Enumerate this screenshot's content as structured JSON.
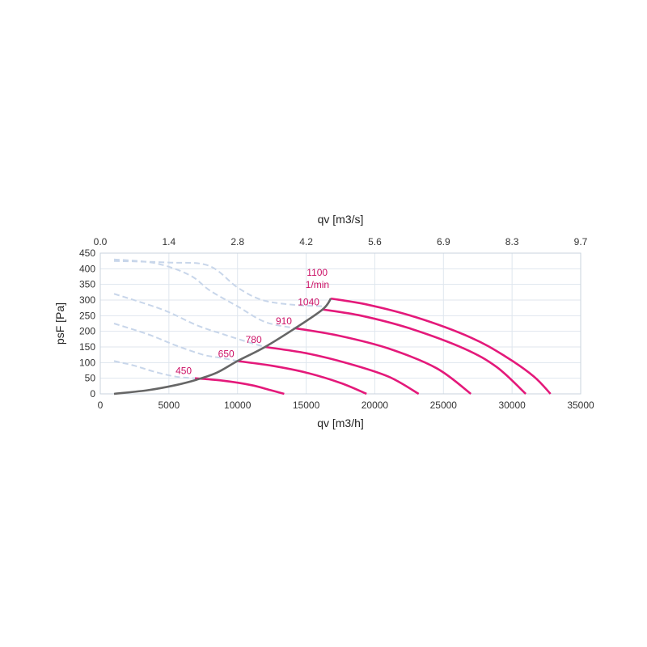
{
  "chart_data": {
    "type": "line",
    "title": "",
    "xlabel": "qv [m3/h]",
    "x2label": "qv [m3/s]",
    "ylabel": "psF [Pa]",
    "xlim": [
      0,
      35000
    ],
    "ylim": [
      0,
      450
    ],
    "x_ticks": [
      "0",
      "5000",
      "10000",
      "15000",
      "20000",
      "25000",
      "30000",
      "35000"
    ],
    "x2_ticks": [
      "0.0",
      "1.4",
      "2.8",
      "4.2",
      "5.6",
      "6.9",
      "8.3",
      "9.7"
    ],
    "y_ticks": [
      "0",
      "50",
      "100",
      "150",
      "200",
      "250",
      "300",
      "350",
      "400",
      "450"
    ],
    "grid": true,
    "unit_label": "1/min",
    "colors": {
      "speed_curve": "#e4197a",
      "system_curve": "#666666",
      "stall_region": "#c8d6ea",
      "label": "#cc1166"
    },
    "series": [
      {
        "label": "450",
        "kind": "speed",
        "x": [
          6900,
          9000,
          11000,
          12400,
          13400
        ],
        "y": [
          50,
          42,
          28,
          12,
          0
        ]
      },
      {
        "label": "650",
        "kind": "speed",
        "x": [
          10000,
          12500,
          15000,
          17500,
          19400
        ],
        "y": [
          105,
          90,
          68,
          35,
          0
        ]
      },
      {
        "label": "780",
        "kind": "speed",
        "x": [
          12000,
          15000,
          18000,
          21000,
          23200
        ],
        "y": [
          150,
          130,
          98,
          55,
          0
        ]
      },
      {
        "label": "910",
        "kind": "speed",
        "x": [
          14200,
          17500,
          21000,
          24500,
          27000
        ],
        "y": [
          210,
          185,
          145,
          82,
          0
        ]
      },
      {
        "label": "1040",
        "kind": "speed",
        "x": [
          16200,
          19000,
          22500,
          26500,
          28900,
          31000
        ],
        "y": [
          270,
          250,
          210,
          145,
          85,
          0
        ]
      },
      {
        "label": "1100",
        "kind": "speed",
        "x": [
          16800,
          19500,
          23000,
          27000,
          29500,
          31600,
          32800
        ],
        "y": [
          305,
          285,
          245,
          180,
          120,
          55,
          0
        ]
      },
      {
        "kind": "system",
        "x": [
          1000,
          3500,
          5500,
          7000,
          8500,
          10000,
          12000,
          14200,
          16200,
          16800
        ],
        "y": [
          0,
          12,
          28,
          45,
          68,
          105,
          150,
          210,
          270,
          305
        ]
      },
      {
        "kind": "stall",
        "x": [
          1000,
          5000,
          7900,
          10000,
          11800,
          14000,
          16200
        ],
        "y": [
          425,
          420,
          410,
          340,
          300,
          285,
          280
        ]
      },
      {
        "kind": "stall",
        "x": [
          1000,
          4000,
          6500,
          8000,
          10000,
          12000,
          14200
        ],
        "y": [
          430,
          418,
          380,
          330,
          280,
          230,
          210
        ]
      },
      {
        "kind": "stall",
        "x": [
          1000,
          4500,
          7000,
          9000,
          10800,
          12000
        ],
        "y": [
          320,
          270,
          220,
          190,
          165,
          150
        ]
      },
      {
        "kind": "stall",
        "x": [
          1000,
          3500,
          5500,
          7500,
          8800,
          10000
        ],
        "y": [
          225,
          190,
          155,
          125,
          115,
          105
        ]
      },
      {
        "kind": "stall",
        "x": [
          1000,
          2500,
          4000,
          5500,
          6900
        ],
        "y": [
          105,
          90,
          70,
          55,
          50
        ]
      }
    ]
  }
}
